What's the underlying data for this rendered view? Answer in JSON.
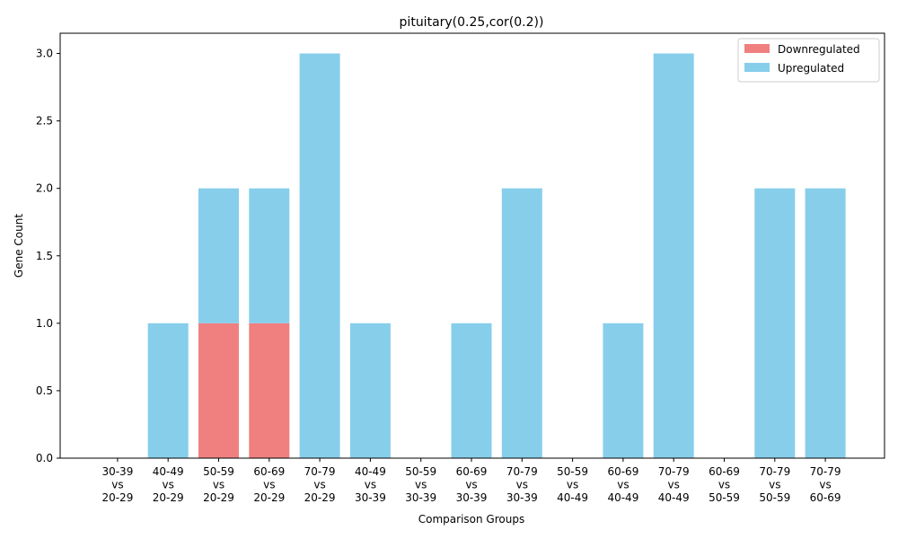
{
  "chart_data": {
    "type": "bar",
    "stacked": true,
    "title": "pituitary(0.25,cor(0.2))",
    "xlabel": "Comparison Groups",
    "ylabel": "Gene Count",
    "ylim": [
      0,
      3.15
    ],
    "yticks": [
      "0.0",
      "0.5",
      "1.0",
      "1.5",
      "2.0",
      "2.5",
      "3.0"
    ],
    "grid": false,
    "legend_position": "top-right",
    "categories": [
      [
        "30-39",
        "vs",
        "20-29"
      ],
      [
        "40-49",
        "vs",
        "20-29"
      ],
      [
        "50-59",
        "vs",
        "20-29"
      ],
      [
        "60-69",
        "vs",
        "20-29"
      ],
      [
        "70-79",
        "vs",
        "20-29"
      ],
      [
        "40-49",
        "vs",
        "30-39"
      ],
      [
        "50-59",
        "vs",
        "30-39"
      ],
      [
        "60-69",
        "vs",
        "30-39"
      ],
      [
        "70-79",
        "vs",
        "30-39"
      ],
      [
        "50-59",
        "vs",
        "40-49"
      ],
      [
        "60-69",
        "vs",
        "40-49"
      ],
      [
        "70-79",
        "vs",
        "40-49"
      ],
      [
        "60-69",
        "vs",
        "50-59"
      ],
      [
        "70-79",
        "vs",
        "50-59"
      ],
      [
        "70-79",
        "vs",
        "60-69"
      ]
    ],
    "series": [
      {
        "name": "Downregulated",
        "color": "#f08080",
        "values": [
          0,
          0,
          1,
          1,
          0,
          0,
          0,
          0,
          0,
          0,
          0,
          0,
          0,
          0,
          0
        ]
      },
      {
        "name": "Upregulated",
        "color": "#87ceeb",
        "values": [
          0,
          1,
          1,
          1,
          3,
          1,
          0,
          1,
          2,
          0,
          1,
          3,
          0,
          2,
          2
        ]
      }
    ]
  }
}
